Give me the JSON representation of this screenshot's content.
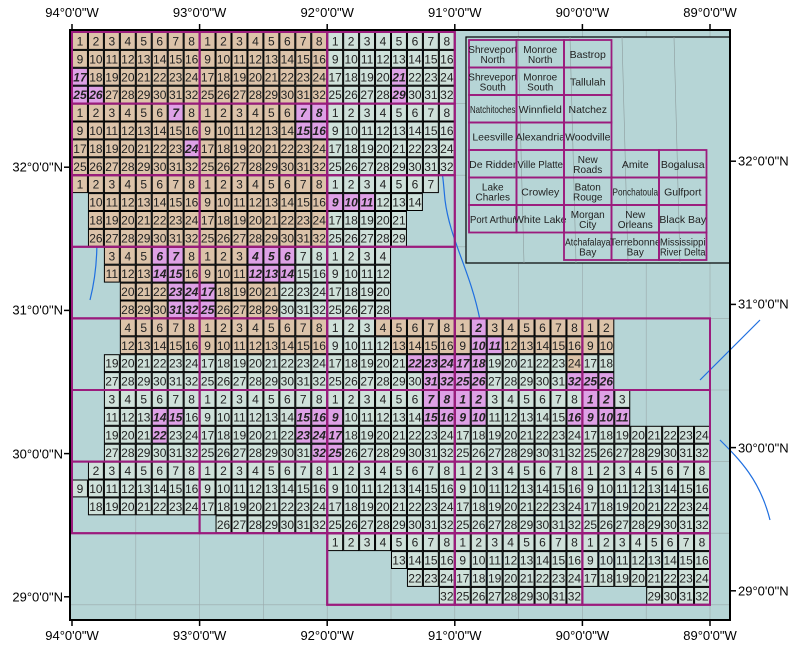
{
  "map": {
    "lon_range": [
      -94,
      -89
    ],
    "lat_range": [
      29,
      33
    ],
    "colors": {
      "water_bg": "#b6d5d6",
      "tan": "#dcc3a9",
      "green": "#cfe1da",
      "pink": "#dea1e6",
      "quad_border": "#9b1b7d",
      "cell_border": "#000000",
      "rivers": "#1f6fe0"
    },
    "top_labels": [
      "94°0'0\"W",
      "93°0'0\"W",
      "92°0'0\"W",
      "91°0'0\"W",
      "90°0'0\"W",
      "89°0'0\"W"
    ],
    "bottom_labels": [
      "94°0'0\"W",
      "93°0'0\"W",
      "92°0'0\"W",
      "91°0'0\"W",
      "90°0'0\"W",
      "89°0'0\"W"
    ],
    "left_labels": [
      "32°0'0\"N",
      "31°0'0\"N",
      "30°0'0\"N",
      "29°0'0\"N"
    ],
    "right_labels": [
      "32°0'0\"N",
      "31°0'0\"N",
      "30°0'0\"N",
      "29°0'0\"N"
    ],
    "label_lons": [
      -94,
      -93,
      -92,
      -91,
      -90,
      -89
    ],
    "label_lats": [
      32,
      31,
      30,
      29
    ],
    "quads": [
      {
        "lon": -94,
        "lat": 33,
        "mask": [
          "tttttttt",
          "tttttttt",
          "pttttttt",
          "pptttttt"
        ]
      },
      {
        "lon": -93,
        "lat": 33,
        "mask": [
          "tttttttt",
          "tttttttt",
          "tttttttt",
          "tttttttt"
        ]
      },
      {
        "lon": -92,
        "lat": 33,
        "mask": [
          "gggggggg",
          "gggggggg",
          "ggggpggg",
          "ggggpggg"
        ]
      },
      {
        "lon": -94,
        "lat": 32.5,
        "mask": [
          "ttttttpt",
          "tttttttt",
          "tttttttp",
          "tttttttt"
        ]
      },
      {
        "lon": -93,
        "lat": 32.5,
        "mask": [
          "ttttttpp",
          "ttttttpp",
          "tttttttt",
          "tttttttt"
        ]
      },
      {
        "lon": -92,
        "lat": 32.5,
        "mask": [
          "gggggggg",
          "gggggggg",
          "gggggggg",
          "gggggggg"
        ]
      },
      {
        "lon": -94,
        "lat": 32,
        "mask": [
          "tttttttt",
          ".ttttttt",
          ".ttttttt",
          ".ttttttt"
        ]
      },
      {
        "lon": -93,
        "lat": 32,
        "mask": [
          "tttttttt",
          "tttttttt",
          "tttttttt",
          "tttttttt"
        ]
      },
      {
        "lon": -92,
        "lat": 32,
        "mask": [
          "ggggggg.",
          "pppggg..",
          "ggggg...",
          "ggggg..."
        ]
      },
      {
        "lon": -94,
        "lat": 31.5,
        "mask": [
          "..tttppt",
          "..tttppt",
          "...tttpp",
          "...tttpp"
        ]
      },
      {
        "lon": -93,
        "lat": 31.5,
        "mask": [
          "tttpppgg",
          "tttpppgg",
          "pttttggg",
          "pttttggg"
        ]
      },
      {
        "lon": -92,
        "lat": 31.5,
        "mask": [
          "gggg....",
          "gggg....",
          "gggg....",
          "gggg...."
        ]
      },
      {
        "lon": -94,
        "lat": 31,
        "mask": [
          "...ttttt",
          "...ttttt",
          "..gggggg",
          "..gggggg"
        ]
      },
      {
        "lon": -93,
        "lat": 31,
        "mask": [
          "tttttttt",
          "tttttttt",
          "gggggggg",
          "gggggggg"
        ]
      },
      {
        "lon": -92,
        "lat": 31,
        "mask": [
          "gggttttt",
          "ggggtttt",
          "gggggppp",
          "ggggggpp"
        ]
      },
      {
        "lon": -91,
        "lat": 31,
        "mask": [
          "tptttttt",
          "tppttttt",
          "ppgggggt",
          "ppgggggp"
        ]
      },
      {
        "lon": -90,
        "lat": 31,
        "mask": [
          "tt......",
          "tt......",
          "gg......",
          "pp......"
        ]
      },
      {
        "lon": -94,
        "lat": 30.5,
        "mask": [
          "..gggggg",
          "..gggppg",
          "..gggpgg",
          "..gggggg"
        ]
      },
      {
        "lon": -93,
        "lat": 30.5,
        "mask": [
          "gggggggg",
          "ggggggpp",
          "ggggggpp",
          "gggggggp"
        ]
      },
      {
        "lon": -92,
        "lat": 30.5,
        "mask": [
          "ggggggpp",
          "pgggggpp",
          "pggggggg",
          "pggggggg"
        ]
      },
      {
        "lon": -91,
        "lat": 30.5,
        "mask": [
          "ppgggggg",
          "ppgggggp",
          "gggggggg",
          "gggggggg"
        ]
      },
      {
        "lon": -90,
        "lat": 30.5,
        "mask": [
          "ppg.....",
          "ppp.....",
          "gggggggg",
          "gggggggg"
        ]
      },
      {
        "lon": -94,
        "lat": 30,
        "mask": [
          ".ggggggg",
          "gggggggg",
          ".ggggggg",
          "........"
        ]
      },
      {
        "lon": -93,
        "lat": 30,
        "mask": [
          "gggggggg",
          "gggggggg",
          "gggggggg",
          ".ggggggg"
        ]
      },
      {
        "lon": -92,
        "lat": 30,
        "mask": [
          "gggggggg",
          "gggggggg",
          "gggggggg",
          "gggggggg"
        ]
      },
      {
        "lon": -91,
        "lat": 30,
        "mask": [
          "gggggggg",
          "gggggggg",
          "gggggggg",
          "gggggggg"
        ]
      },
      {
        "lon": -90,
        "lat": 30,
        "mask": [
          "gggggggg",
          "gggggggg",
          "gggggggg",
          "gggggggg"
        ]
      },
      {
        "lon": -92,
        "lat": 29.5,
        "mask": [
          "gggggggg",
          "....gggg",
          ".....ggg",
          ".......g"
        ]
      },
      {
        "lon": -91,
        "lat": 29.5,
        "mask": [
          "gggggggg",
          "gggggggg",
          "gggggggg",
          "gggggggg"
        ]
      },
      {
        "lon": -90,
        "lat": 29.5,
        "mask": [
          "gggggggg",
          "gggggggg",
          "gggggggg",
          "....gggg"
        ]
      }
    ],
    "outer_boxes": [
      {
        "w": -94,
        "n": 33,
        "e": -91,
        "s": 31
      },
      {
        "w": -94,
        "n": 31,
        "e": -89,
        "s": 29.5
      },
      {
        "w": -92,
        "n": 29.5,
        "e": -89,
        "s": 29
      }
    ]
  },
  "index": {
    "rows": [
      [
        [
          "Shreveport",
          "North"
        ],
        [
          "Monroe",
          "North"
        ],
        [
          "Bastrop"
        ],
        null,
        null
      ],
      [
        [
          "Shreveport",
          "South"
        ],
        [
          "Monroe",
          "South"
        ],
        [
          "Tallulah"
        ],
        null,
        null
      ],
      [
        [
          "Natchitoches"
        ],
        [
          "Winnfield"
        ],
        [
          "Natchez"
        ],
        null,
        null
      ],
      [
        [
          "Leesville"
        ],
        [
          "Alexandria"
        ],
        [
          "Woodville"
        ],
        null,
        null
      ],
      [
        [
          "De Ridder"
        ],
        [
          "Ville Platte"
        ],
        [
          "New",
          "Roads"
        ],
        [
          "Amite"
        ],
        [
          "Bogalusa"
        ]
      ],
      [
        [
          "Lake",
          "Charles"
        ],
        [
          "Crowley"
        ],
        [
          "Baton",
          "Rouge"
        ],
        [
          "Ponchatoula"
        ],
        [
          "Gulfport"
        ]
      ],
      [
        [
          "Port Arthur"
        ],
        [
          "White Lake"
        ],
        [
          "Morgan",
          "City"
        ],
        [
          "New",
          "Orleans"
        ],
        [
          "Black Bay"
        ]
      ],
      [
        null,
        null,
        [
          "Atchafalaya",
          "Bay"
        ],
        [
          "Terrebonne",
          "Bay"
        ],
        [
          "Mississippi",
          "River Delta"
        ]
      ]
    ]
  }
}
